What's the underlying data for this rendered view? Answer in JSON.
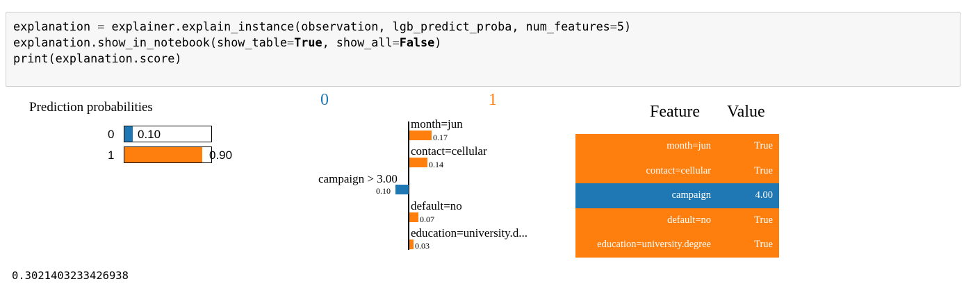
{
  "code": {
    "line1": {
      "prefix": "explanation ",
      "eq": "=",
      "middle": " explainer.explain_instance(observation, lgb_predict_proba, num_features",
      "eq2": "=",
      "suffix": "5)"
    },
    "line2": {
      "prefix": "explanation.show_in_notebook(show_table",
      "eq": "=",
      "kw1": "True",
      "mid": ", show_all",
      "eq2": "=",
      "kw2": "False",
      "suffix": ")"
    },
    "line3": "print(explanation.score)"
  },
  "prediction_probabilities": {
    "title": "Prediction probabilities",
    "rows": [
      {
        "label": "0",
        "value_text": "0.10",
        "value": 0.1,
        "color": "#1f77b4"
      },
      {
        "label": "1",
        "value_text": "0.90",
        "value": 0.9,
        "color": "#ff7f0e"
      }
    ]
  },
  "explanation_chart": {
    "class_neg": "0",
    "class_pos": "1",
    "neg_color": "#1f77b4",
    "pos_color": "#ff7f0e",
    "features": [
      {
        "label": "month=jun",
        "value_text": "0.17",
        "weight": 0.17,
        "side": "pos"
      },
      {
        "label": "contact=cellular",
        "value_text": "0.14",
        "weight": 0.14,
        "side": "pos"
      },
      {
        "label": "campaign > 3.00",
        "value_text": "0.10",
        "weight": 0.1,
        "side": "neg"
      },
      {
        "label": "default=no",
        "value_text": "0.07",
        "weight": 0.07,
        "side": "pos"
      },
      {
        "label": "education=university.d...",
        "value_text": "0.03",
        "weight": 0.03,
        "side": "pos"
      }
    ]
  },
  "feature_table": {
    "header_feature": "Feature",
    "header_value": "Value",
    "rows": [
      {
        "feature": "month=jun",
        "value": "True",
        "color": "#ff7f0e"
      },
      {
        "feature": "contact=cellular",
        "value": "True",
        "color": "#ff7f0e"
      },
      {
        "feature": "campaign",
        "value": "4.00",
        "color": "#1f77b4"
      },
      {
        "feature": "default=no",
        "value": "True",
        "color": "#ff7f0e"
      },
      {
        "feature": "education=university.degree",
        "value": "True",
        "color": "#ff7f0e"
      }
    ]
  },
  "output": {
    "score": "0.3021403233426938"
  }
}
